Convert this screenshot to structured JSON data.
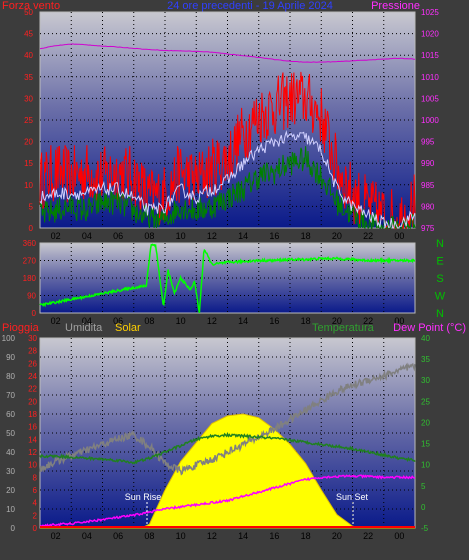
{
  "header": {
    "left_label": "Forza vento",
    "title": "24 ore precedenti - 19 Aprile 2024",
    "right_label": "Pressione"
  },
  "middle": {
    "compass": [
      "N",
      "W",
      "S",
      "E",
      "N"
    ]
  },
  "lower_header": {
    "rain_label": "Pioggia",
    "humidity_label": "Umidita",
    "solar_label": "Solar",
    "temp_label": "Temperatura",
    "dew_label": "Dew Point (°C)"
  },
  "annotations": {
    "sunrise": "Sun Rise",
    "sunset": "Sun Set"
  },
  "colors": {
    "wind_gust": "#ff0000",
    "wind_avg": "#008000",
    "wind_smooth": "#d0d0ff",
    "pressure": "#d000d0",
    "direction": "#00ff00",
    "humidity": "#808080",
    "solar": "#ffff00",
    "temperature": "#208020",
    "dewpoint": "#ff00ff",
    "rain": "#ff0000"
  },
  "chart_data": [
    {
      "type": "line",
      "x_ticks": [
        "02",
        "04",
        "06",
        "08",
        "10",
        "12",
        "14",
        "16",
        "18",
        "20",
        "22",
        "00"
      ],
      "x_hours": [
        0,
        24
      ],
      "y_left_ticks": [
        0,
        5,
        10,
        15,
        20,
        25,
        30,
        35,
        40,
        45,
        50
      ],
      "y_left_range": [
        0,
        50
      ],
      "y_right_ticks": [
        975,
        980,
        985,
        990,
        995,
        1000,
        1005,
        1010,
        1015,
        1020,
        1025
      ],
      "y_right_range": [
        975,
        1025
      ],
      "grid": true,
      "series": [
        {
          "axis": "left",
          "hours": [
            0,
            1,
            2,
            3,
            4,
            5,
            6,
            7,
            8,
            9,
            10,
            11,
            12,
            13,
            14,
            15,
            16,
            17,
            18,
            19,
            20,
            21,
            22,
            23,
            24
          ],
          "values": [
            11,
            13,
            12,
            13,
            12,
            13,
            12,
            7,
            8,
            13,
            11,
            14,
            16,
            22,
            26,
            28,
            30,
            30,
            26,
            14,
            8,
            5,
            3,
            2,
            6
          ]
        },
        {
          "axis": "left",
          "hours": [
            0,
            1,
            2,
            3,
            4,
            5,
            6,
            7,
            8,
            9,
            10,
            11,
            12,
            13,
            14,
            15,
            16,
            17,
            18,
            19,
            20,
            21,
            22,
            23,
            24
          ],
          "values": [
            3,
            4,
            5,
            4,
            6,
            6,
            4,
            2,
            2,
            5,
            4,
            5,
            7,
            9,
            12,
            13,
            15,
            16,
            12,
            6,
            3,
            1,
            0,
            0,
            1
          ]
        },
        {
          "axis": "left",
          "hours": [
            0,
            1,
            2,
            3,
            4,
            5,
            6,
            7,
            8,
            9,
            10,
            11,
            12,
            13,
            14,
            15,
            16,
            17,
            18,
            19,
            20,
            21,
            22,
            23,
            24
          ],
          "values": [
            7,
            8,
            8,
            8,
            9,
            9,
            7,
            4,
            5,
            9,
            7,
            9,
            11,
            15,
            18,
            20,
            21,
            21,
            18,
            9,
            5,
            3,
            1,
            1,
            3
          ]
        },
        {
          "axis": "right",
          "hours": [
            0,
            1,
            2,
            3,
            4,
            5,
            6,
            7,
            8,
            9,
            10,
            11,
            12,
            13,
            14,
            15,
            16,
            17,
            18,
            19,
            20,
            21,
            22,
            23,
            24
          ],
          "values": [
            1016.5,
            1017.2,
            1017.6,
            1017.4,
            1017.1,
            1016.9,
            1016.6,
            1016.3,
            1016.1,
            1016.0,
            1015.9,
            1015.7,
            1015.3,
            1014.9,
            1014.5,
            1014.0,
            1013.6,
            1013.4,
            1013.4,
            1013.5,
            1013.7,
            1013.9,
            1014.1,
            1014.3,
            1014.1
          ]
        }
      ]
    },
    {
      "type": "line",
      "x_ticks": [
        "02",
        "04",
        "06",
        "08",
        "10",
        "12",
        "14",
        "16",
        "18",
        "20",
        "22",
        "00"
      ],
      "x_hours": [
        0,
        24
      ],
      "y_left_ticks": [
        0,
        90,
        180,
        270,
        360
      ],
      "y_left_range": [
        0,
        360
      ],
      "grid": true,
      "series": [
        {
          "axis": "left",
          "hours": [
            0,
            1,
            2,
            3,
            4,
            5,
            6,
            6.8,
            7.1,
            7.4,
            7.9,
            8.2,
            8.6,
            9.0,
            9.3,
            9.6,
            9.9,
            10.2,
            10.5,
            11,
            12,
            13,
            14,
            15,
            16,
            17,
            18,
            19,
            20,
            21,
            22,
            23,
            24
          ],
          "values": [
            40,
            55,
            70,
            85,
            100,
            115,
            130,
            140,
            350,
            350,
            30,
            220,
            100,
            180,
            150,
            120,
            160,
            0,
            330,
            250,
            260,
            265,
            270,
            270,
            275,
            275,
            280,
            280,
            275,
            270,
            270,
            270,
            270
          ]
        }
      ]
    },
    {
      "type": "line",
      "x_ticks": [
        "02",
        "04",
        "06",
        "08",
        "10",
        "12",
        "14",
        "16",
        "18",
        "20",
        "22",
        "00"
      ],
      "x_hours": [
        0,
        24
      ],
      "y_far_left_ticks": [
        0,
        10,
        20,
        30,
        40,
        50,
        60,
        70,
        80,
        90,
        100
      ],
      "y_far_left_range": [
        0,
        100
      ],
      "y_left_ticks": [
        0,
        2,
        4,
        6,
        8,
        10,
        12,
        14,
        16,
        18,
        20,
        22,
        24,
        26,
        28,
        30
      ],
      "y_left_range": [
        0,
        30
      ],
      "y_right_ticks": [
        -5,
        0,
        5,
        10,
        15,
        20,
        25,
        30,
        35,
        40
      ],
      "y_right_range": [
        -5,
        40
      ],
      "grid": true,
      "series": [
        {
          "axis": "far_left",
          "hours": [
            0,
            1,
            2,
            3,
            4,
            5,
            6,
            7,
            8,
            9,
            10,
            11,
            12,
            13,
            14,
            15,
            16,
            17,
            18,
            19,
            20,
            21,
            22,
            23,
            24
          ],
          "values": [
            31,
            35,
            38,
            41,
            44,
            47,
            49,
            43,
            34,
            30,
            33,
            36,
            40,
            44,
            48,
            52,
            57,
            62,
            67,
            72,
            75,
            78,
            80,
            83,
            85
          ]
        },
        {
          "axis": "far_left",
          "hours": [
            0,
            1,
            2,
            3,
            4,
            5,
            6,
            6.5,
            7,
            8,
            9,
            10,
            11,
            12,
            13,
            14,
            15,
            16,
            17,
            18,
            19,
            20,
            20.5,
            21,
            24
          ],
          "values": [
            0,
            0,
            0,
            0,
            0,
            0,
            0,
            0,
            2,
            20,
            35,
            45,
            55,
            59,
            60,
            58,
            52,
            44,
            34,
            20,
            7,
            1,
            0,
            0,
            0
          ]
        },
        {
          "axis": "right",
          "hours": [
            0,
            1,
            2,
            3,
            4,
            5,
            6,
            7,
            8,
            9,
            10,
            11,
            12,
            13,
            14,
            15,
            16,
            17,
            18,
            19,
            20,
            21,
            22,
            23,
            24
          ],
          "values": [
            12,
            12,
            11.8,
            11.5,
            11.3,
            11.0,
            10.5,
            11.5,
            13.0,
            14.5,
            16.0,
            16.8,
            17.0,
            16.8,
            16.5,
            16.2,
            15.8,
            15.3,
            14.8,
            14.3,
            13.8,
            13.0,
            12.3,
            11.5,
            11.0
          ]
        },
        {
          "axis": "right",
          "hours": [
            0,
            1,
            2,
            3,
            4,
            5,
            6,
            7,
            8,
            9,
            10,
            11,
            12,
            13,
            14,
            15,
            16,
            17,
            18,
            19,
            20,
            21,
            22,
            23,
            24
          ],
          "values": [
            -4.5,
            -4.2,
            -4.0,
            -3.5,
            -3.0,
            -2.5,
            -2.0,
            -1.2,
            -0.5,
            0.0,
            0.5,
            1.0,
            1.5,
            2.5,
            3.5,
            4.5,
            5.5,
            6.5,
            7.0,
            7.2,
            7.3,
            7.2,
            7.0,
            7.0,
            7.0
          ]
        },
        {
          "axis": "left",
          "hours": [
            0,
            24
          ],
          "values": [
            0,
            0
          ]
        }
      ]
    }
  ]
}
